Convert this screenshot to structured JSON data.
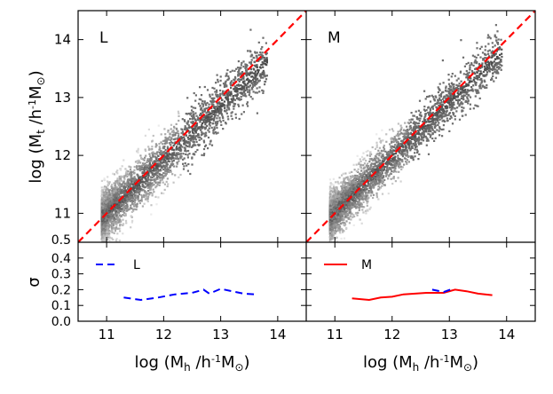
{
  "chart_data": [
    {
      "type": "scatter",
      "panel": "top-left",
      "label": "L",
      "xlim": [
        10.5,
        14.5
      ],
      "ylim": [
        10.5,
        14.5
      ],
      "xticks": [
        "11",
        "12",
        "13",
        "14"
      ],
      "yticks": [
        "11",
        "12",
        "13",
        "14"
      ],
      "extra_ytick": "0.5",
      "ylabel": "log (M_t /h^-1 M_⊙)",
      "reference_line": {
        "style": "dashed",
        "color": "#ff0000",
        "x": [
          10.5,
          14.5
        ],
        "y": [
          10.5,
          14.5
        ]
      },
      "scatter_trend": {
        "x_range": [
          10.9,
          13.8
        ],
        "slope": 0.93,
        "intercept": 0.8,
        "scatter": 0.22
      }
    },
    {
      "type": "scatter",
      "panel": "top-right",
      "label": "M",
      "xlim": [
        10.5,
        14.5
      ],
      "ylim": [
        10.5,
        14.5
      ],
      "reference_line": {
        "style": "dashed",
        "color": "#ff0000",
        "x": [
          10.5,
          14.5
        ],
        "y": [
          10.5,
          14.5
        ]
      },
      "scatter_trend": {
        "x_range": [
          10.9,
          13.9
        ],
        "slope": 0.95,
        "intercept": 0.6,
        "scatter": 0.2
      }
    },
    {
      "type": "line",
      "panel": "bottom-left",
      "xlim": [
        10.5,
        14.5
      ],
      "ylim": [
        0.0,
        0.5
      ],
      "xticks": [
        "11",
        "12",
        "13",
        "14"
      ],
      "yticks": [
        "0.0",
        "0.1",
        "0.2",
        "0.3",
        "0.4"
      ],
      "xlabel": "log (M_h /h^-1 M_⊙)",
      "ylabel": "σ",
      "legend": "top-left",
      "series": [
        {
          "name": "L",
          "color": "#0000ff",
          "style": "dashed",
          "x": [
            11.3,
            11.6,
            11.9,
            12.2,
            12.5,
            12.7,
            12.8,
            13.0,
            13.2,
            13.4,
            13.6
          ],
          "y": [
            0.15,
            0.135,
            0.15,
            0.17,
            0.18,
            0.2,
            0.175,
            0.205,
            0.19,
            0.175,
            0.17
          ]
        }
      ]
    },
    {
      "type": "line",
      "panel": "bottom-right",
      "xlim": [
        10.5,
        14.5
      ],
      "ylim": [
        0.0,
        0.5
      ],
      "xticks": [
        "11",
        "12",
        "13",
        "14"
      ],
      "xlabel": "log (M_h /h^-1 M_⊙)",
      "legend": "top-left",
      "series": [
        {
          "name": "M",
          "color": "#ff0000",
          "style": "solid",
          "x": [
            11.3,
            11.6,
            11.8,
            12.0,
            12.2,
            12.4,
            12.6,
            12.9,
            13.1,
            13.3,
            13.5,
            13.75
          ],
          "y": [
            0.145,
            0.135,
            0.15,
            0.155,
            0.17,
            0.175,
            0.18,
            0.18,
            0.2,
            0.19,
            0.175,
            0.165
          ]
        },
        {
          "name": "",
          "color": "#0000ff",
          "style": "dashed",
          "x": [
            12.7,
            12.9,
            13.05
          ],
          "y": [
            0.2,
            0.185,
            0.205
          ]
        }
      ]
    }
  ]
}
